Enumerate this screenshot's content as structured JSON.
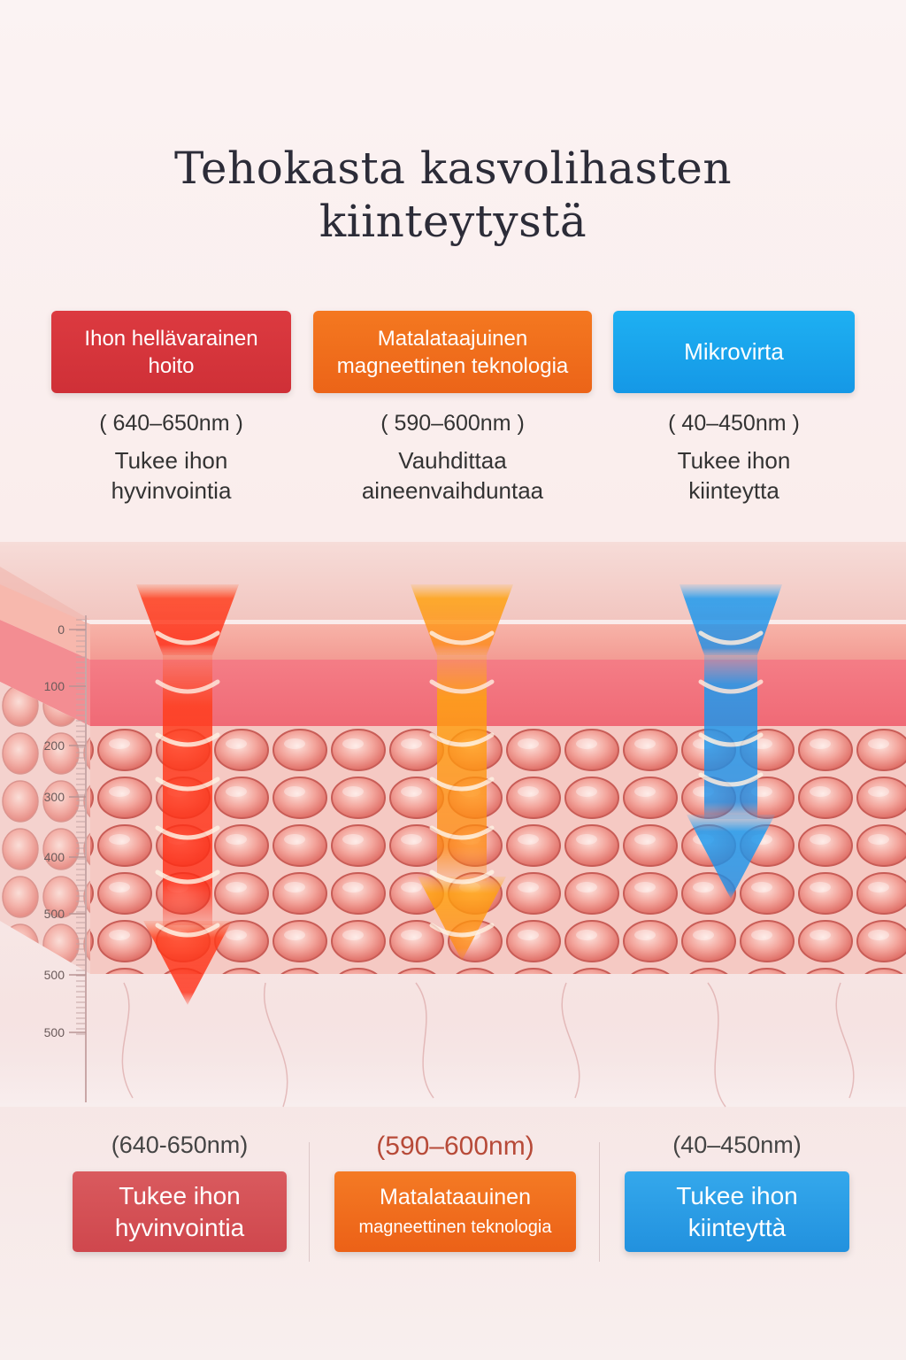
{
  "title": {
    "line1": "Tehokasta kasvolihasten",
    "line2": "kiinteytystä"
  },
  "top": [
    {
      "label_line1": "Ihon hellävarainen",
      "label_line2": "hoito",
      "wavelength": "( 640–650nm )",
      "desc_line1": "Tukee ihon",
      "desc_line2": "hyvinvointia",
      "color": "#d8363d"
    },
    {
      "label_line1": "Matalataajuinen",
      "label_line2": "magneettinen teknologia",
      "wavelength": "( 590–600nm )",
      "desc_line1": "Vauhdittaa",
      "desc_line2": "aineenvaihduntaa",
      "color": "#f26d1c"
    },
    {
      "label_line1": "Mikrovirta",
      "label_line2": "",
      "wavelength": "( 40–450nm )",
      "desc_line1": "Tukee ihon",
      "desc_line2": "kiinteytta",
      "color": "#1aa3ec"
    }
  ],
  "scale": {
    "ticks": [
      "0",
      "100",
      "200",
      "300",
      "400",
      "500",
      "500",
      "500"
    ]
  },
  "bottom": [
    {
      "wavelength": "(640-650nm)",
      "line1": "Tukee ihon",
      "line2": "hyvinvointia",
      "color": "#d54d52"
    },
    {
      "wavelength": "(590–600nm)",
      "line1": "Matalataauinen",
      "line2": "magneettinen teknologia",
      "color": "#f26a1d"
    },
    {
      "wavelength": "(40–450nm)",
      "line1": "Tukee ihon",
      "line2": "kiinteyttà",
      "color": "#2c9ee4"
    }
  ],
  "beams": [
    {
      "name": "red",
      "color": "#ff3a1a",
      "depth": 500
    },
    {
      "name": "orange",
      "color": "#ff9a10",
      "depth": 500
    },
    {
      "name": "blue",
      "color": "#1a9af0",
      "depth": 400
    }
  ]
}
